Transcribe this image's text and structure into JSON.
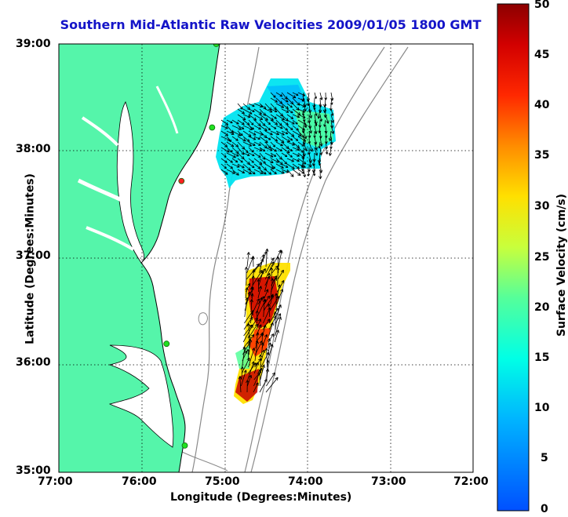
{
  "title": "Southern Mid-Atlantic Raw Velocities 2009/01/05 1800 GMT",
  "xlabel": "Longitude (Degrees:Minutes)",
  "ylabel": "Latitude (Degrees:Minutes)",
  "colorbar_label": "Surface Velocity (cm/s)",
  "x_ticks": [
    "77:00",
    "76:00",
    "75:00",
    "74:00",
    "73:00",
    "72:00"
  ],
  "y_ticks": [
    "39:00",
    "38:00",
    "37:00",
    "36:00",
    "35:00"
  ],
  "colorbar_ticks": [
    "50",
    "45",
    "40",
    "35",
    "30",
    "25",
    "20",
    "15",
    "10",
    "5",
    "0"
  ],
  "map": {
    "lon_range": [
      -77,
      -72
    ],
    "lat_range": [
      35,
      39
    ],
    "land_color": "#55f5aa",
    "grid": "dotted",
    "colorbar_range": [
      0,
      50
    ],
    "colormap": "jet"
  },
  "stations": [
    {
      "lon": -75.1,
      "lat": 39.0,
      "status": "green"
    },
    {
      "lon": -75.15,
      "lat": 38.22,
      "status": "green"
    },
    {
      "lon": -75.52,
      "lat": 37.72,
      "status": "red"
    },
    {
      "lon": -75.7,
      "lat": 36.2,
      "status": "green"
    },
    {
      "lon": -75.48,
      "lat": 35.25,
      "status": "green"
    }
  ],
  "velocity_regions": [
    {
      "name": "north",
      "speed_range": [
        8,
        20
      ]
    },
    {
      "name": "south",
      "speed_range": [
        15,
        50
      ]
    }
  ]
}
